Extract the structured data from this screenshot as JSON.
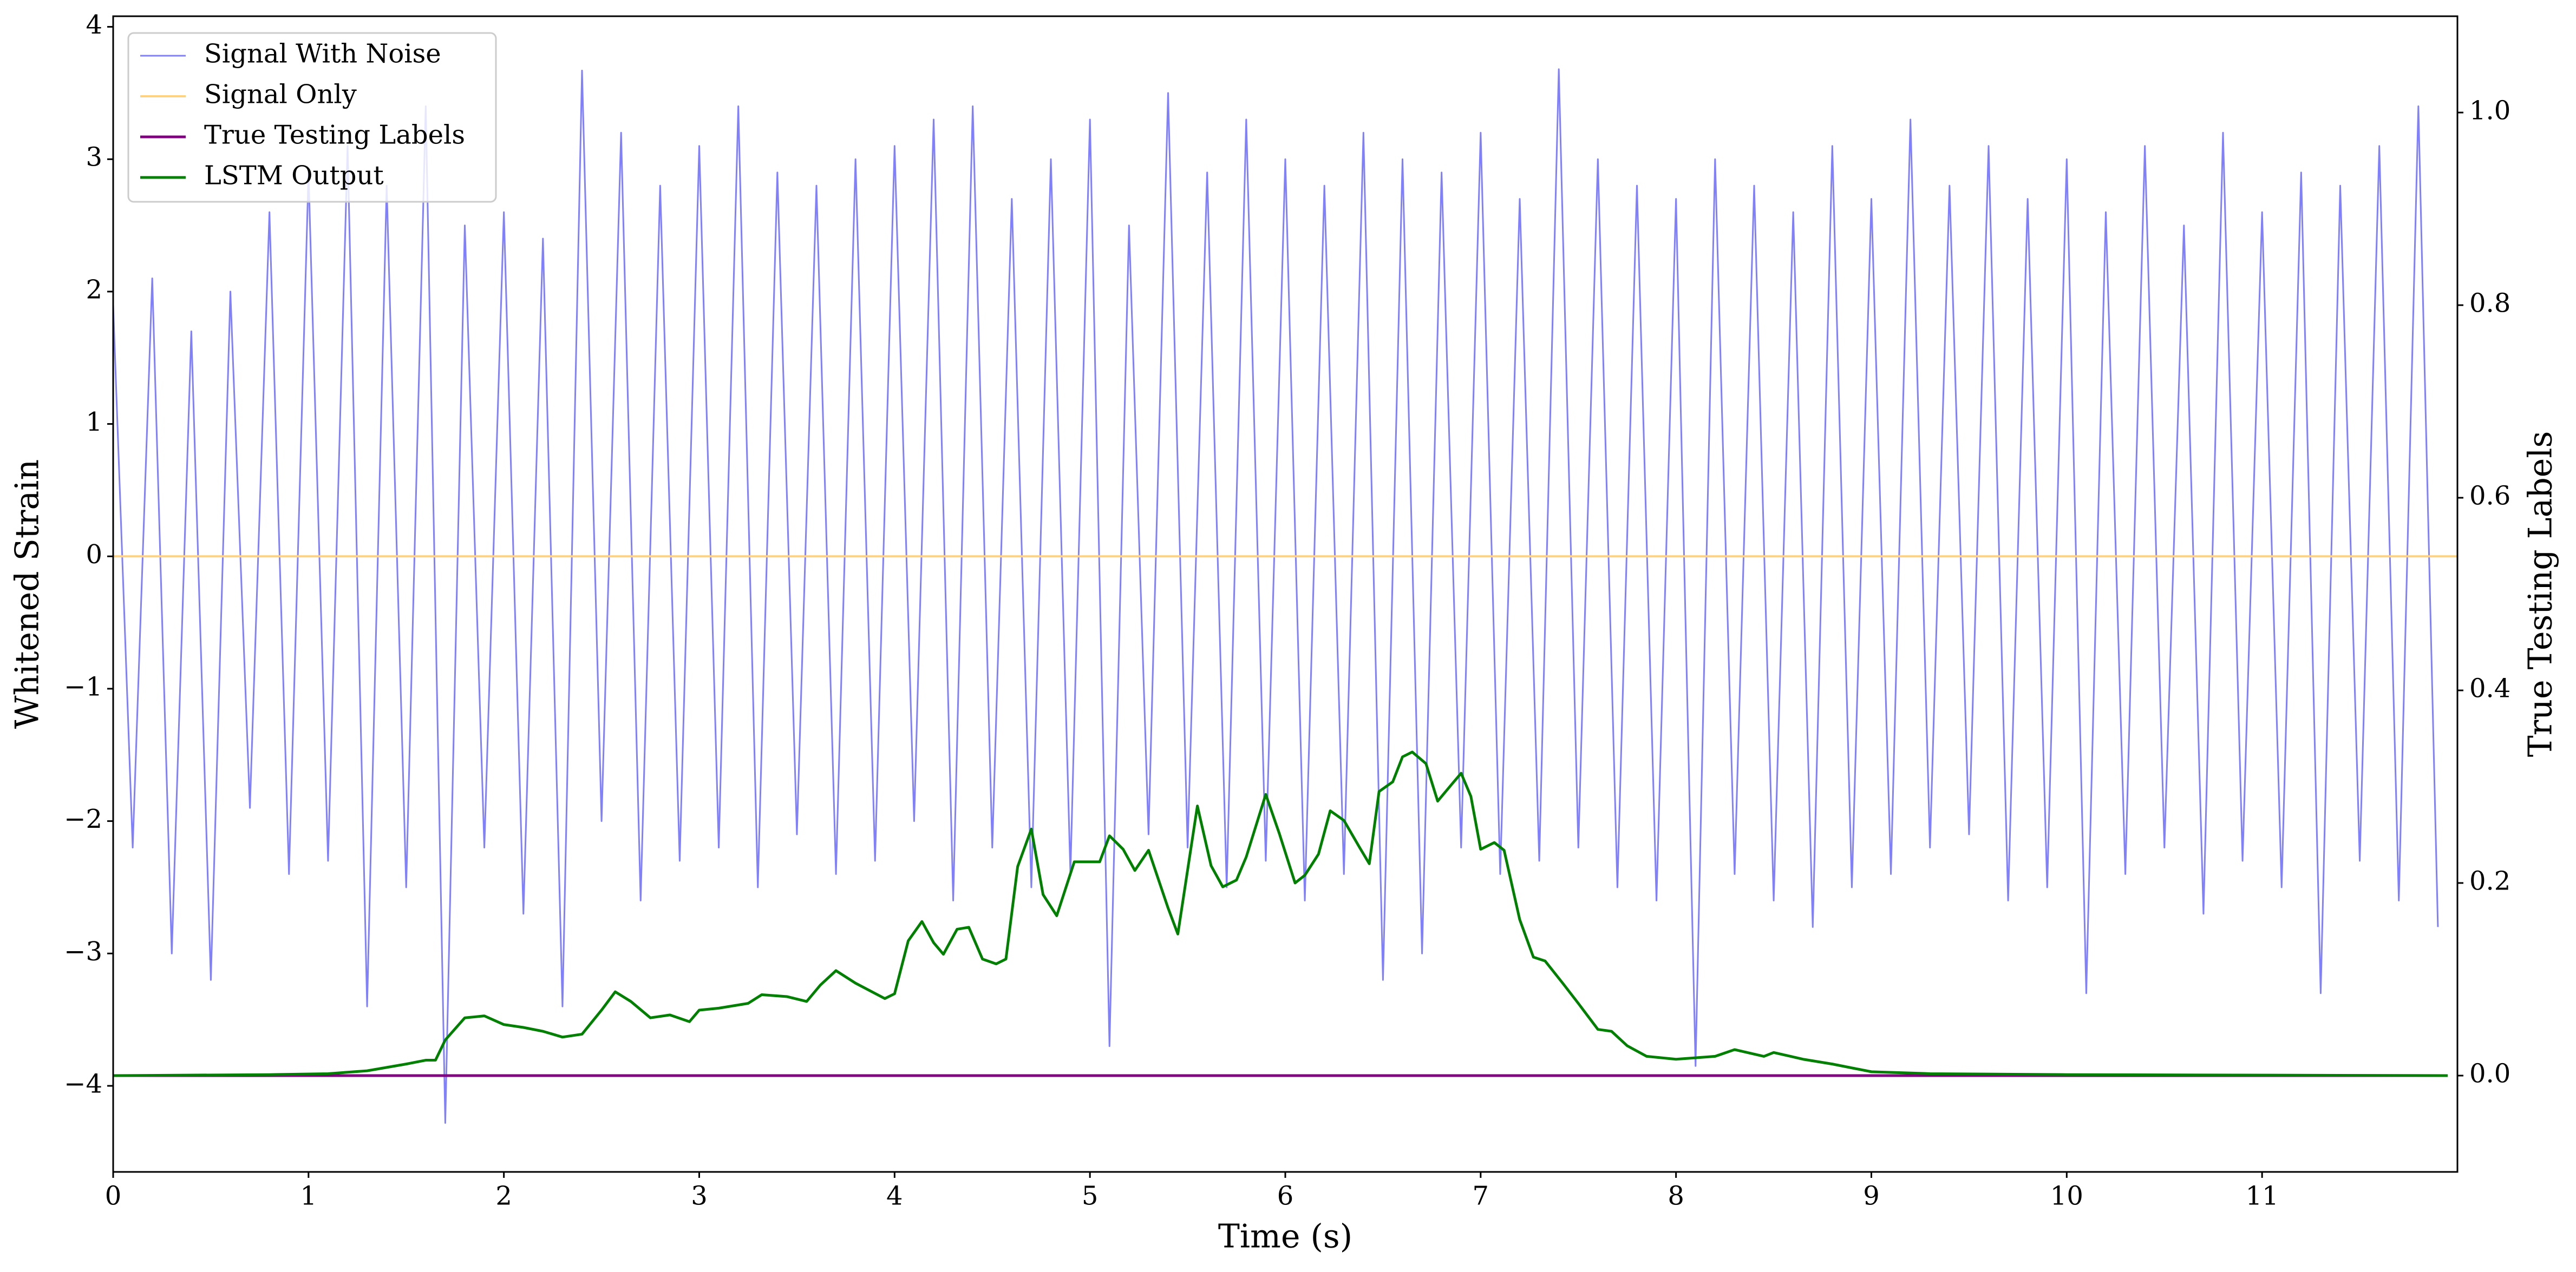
{
  "chart_data": {
    "type": "line",
    "xlabel": "Time (s)",
    "ylabel": "Whitened Strain",
    "y2label": "True Testing Labels",
    "xlim": [
      0,
      12
    ],
    "ylim": [
      -4.65,
      4.08
    ],
    "y2lim": [
      -0.1,
      1.1
    ],
    "xticks": [
      0,
      1,
      2,
      3,
      4,
      5,
      6,
      7,
      8,
      9,
      10,
      11
    ],
    "yticks": [
      {
        "value": -4,
        "label": "−4"
      },
      {
        "value": -3,
        "label": "−3"
      },
      {
        "value": -2,
        "label": "−2"
      },
      {
        "value": -1,
        "label": "−1"
      },
      0,
      1,
      2,
      3,
      4
    ],
    "y2ticks": [
      {
        "value": 0,
        "label": "0.0"
      },
      0.2,
      0.4,
      0.6,
      0.8,
      {
        "value": 1,
        "label": "1.0"
      }
    ],
    "legend": "upper left",
    "series": [
      {
        "name": "Signal With Noise",
        "color": "#8080ff",
        "width": 3,
        "x": [
          0,
          0.1,
          0.2,
          0.3,
          0.4,
          0.5,
          0.6,
          0.7,
          0.8,
          0.9,
          1,
          1.1,
          1.2,
          1.3,
          1.4,
          1.5,
          1.6,
          1.7,
          1.8,
          1.9,
          2,
          2.1,
          2.2,
          2.3,
          2.4,
          2.5,
          2.6,
          2.7,
          2.8,
          2.9,
          3,
          3.1,
          3.2,
          3.3,
          3.4,
          3.5,
          3.6,
          3.7,
          3.8,
          3.9,
          4,
          4.1,
          4.2,
          4.3,
          4.4,
          4.5,
          4.6,
          4.7,
          4.8,
          4.9,
          5,
          5.1,
          5.2,
          5.3,
          5.4,
          5.5,
          5.6,
          5.7,
          5.8,
          5.9,
          6,
          6.1,
          6.2,
          6.3,
          6.4,
          6.5,
          6.6,
          6.7,
          6.8,
          6.9,
          7,
          7.1,
          7.2,
          7.3,
          7.4,
          7.5,
          7.6,
          7.7,
          7.8,
          7.9,
          8,
          8.1,
          8.2,
          8.3,
          8.4,
          8.5,
          8.6,
          8.7,
          8.8,
          8.9,
          9,
          9.1,
          9.2,
          9.3,
          9.4,
          9.5,
          9.6,
          9.7,
          9.8,
          9.9,
          10,
          10.1,
          10.2,
          10.3,
          10.4,
          10.5,
          10.6,
          10.7,
          10.8,
          10.9,
          11,
          11.1,
          11.2,
          11.3,
          11.4,
          11.5,
          11.6,
          11.7,
          11.8,
          11.9
        ],
        "values": [
          1.9,
          -2.2,
          2.1,
          -3.0,
          1.7,
          -3.2,
          2.0,
          -1.9,
          2.6,
          -2.4,
          2.9,
          -2.3,
          3.1,
          -3.4,
          2.8,
          -2.5,
          3.4,
          -4.28,
          2.5,
          -2.2,
          2.6,
          -2.7,
          2.4,
          -3.4,
          3.67,
          -2.0,
          3.2,
          -2.6,
          2.8,
          -2.3,
          3.1,
          -2.2,
          3.4,
          -2.5,
          2.9,
          -2.1,
          2.8,
          -2.4,
          3.0,
          -2.3,
          3.1,
          -2.0,
          3.3,
          -2.6,
          3.4,
          -2.2,
          2.7,
          -2.5,
          3.0,
          -2.4,
          3.3,
          -3.7,
          2.5,
          -2.1,
          3.5,
          -2.2,
          2.9,
          -2.5,
          3.3,
          -2.3,
          3.0,
          -2.6,
          2.8,
          -2.4,
          3.2,
          -3.2,
          3.0,
          -3.0,
          2.9,
          -2.2,
          3.2,
          -2.4,
          2.7,
          -2.3,
          3.68,
          -2.2,
          3.0,
          -2.5,
          2.8,
          -2.6,
          2.7,
          -3.85,
          3.0,
          -2.4,
          2.8,
          -2.6,
          2.6,
          -2.8,
          3.1,
          -2.5,
          2.7,
          -2.4,
          3.3,
          -2.2,
          2.8,
          -2.1,
          3.1,
          -2.6,
          2.7,
          -2.5,
          3.0,
          -3.3,
          2.6,
          -2.4,
          3.1,
          -2.2,
          2.5,
          -2.7,
          3.2,
          -2.3,
          2.6,
          -2.5,
          2.9,
          -3.3,
          2.8,
          -2.3,
          3.1,
          -2.6,
          3.4,
          -2.8
        ]
      },
      {
        "name": "Signal Only",
        "color": "#ffd280",
        "width": 4,
        "x": [
          0,
          12
        ],
        "values": [
          0,
          0
        ]
      },
      {
        "name": "True Testing Labels",
        "color": "purple",
        "width": 5,
        "axis": "y2",
        "x": [
          0,
          11.95
        ],
        "values": [
          0,
          0
        ]
      },
      {
        "name": "LSTM Output",
        "color": "green",
        "width": 5,
        "axis": "y2",
        "x": [
          0,
          0.8,
          1.1,
          1.3,
          1.5,
          1.6,
          1.65,
          1.7,
          1.8,
          1.9,
          2.0,
          2.1,
          2.2,
          2.3,
          2.4,
          2.5,
          2.57,
          2.65,
          2.75,
          2.85,
          2.95,
          3.0,
          3.1,
          3.25,
          3.32,
          3.45,
          3.55,
          3.62,
          3.7,
          3.8,
          3.95,
          4.0,
          4.07,
          4.14,
          4.2,
          4.25,
          4.32,
          4.38,
          4.45,
          4.52,
          4.57,
          4.63,
          4.7,
          4.76,
          4.83,
          4.92,
          5.05,
          5.1,
          5.17,
          5.23,
          5.3,
          5.4,
          5.45,
          5.55,
          5.62,
          5.68,
          5.75,
          5.8,
          5.9,
          5.97,
          6.05,
          6.1,
          6.17,
          6.23,
          6.3,
          6.38,
          6.43,
          6.48,
          6.55,
          6.6,
          6.65,
          6.72,
          6.78,
          6.85,
          6.9,
          6.95,
          7.0,
          7.07,
          7.12,
          7.2,
          7.27,
          7.33,
          7.42,
          7.5,
          7.6,
          7.67,
          7.75,
          7.85,
          8.0,
          8.2,
          8.3,
          8.45,
          8.5,
          8.65,
          8.8,
          9.0,
          9.3,
          10.0,
          11.95
        ],
        "values": [
          0,
          0.001,
          0.002,
          0.005,
          0.012,
          0.016,
          0.016,
          0.037,
          0.06,
          0.062,
          0.053,
          0.05,
          0.046,
          0.04,
          0.043,
          0.068,
          0.087,
          0.077,
          0.06,
          0.063,
          0.056,
          0.068,
          0.07,
          0.075,
          0.084,
          0.082,
          0.077,
          0.094,
          0.109,
          0.096,
          0.08,
          0.085,
          0.14,
          0.16,
          0.138,
          0.126,
          0.152,
          0.154,
          0.121,
          0.116,
          0.121,
          0.217,
          0.256,
          0.188,
          0.166,
          0.222,
          0.222,
          0.249,
          0.235,
          0.213,
          0.234,
          0.174,
          0.147,
          0.28,
          0.218,
          0.196,
          0.203,
          0.227,
          0.292,
          0.251,
          0.2,
          0.208,
          0.23,
          0.275,
          0.265,
          0.237,
          0.22,
          0.295,
          0.305,
          0.331,
          0.336,
          0.324,
          0.285,
          0.302,
          0.314,
          0.29,
          0.235,
          0.242,
          0.234,
          0.162,
          0.123,
          0.119,
          0.096,
          0.075,
          0.048,
          0.046,
          0.031,
          0.02,
          0.017,
          0.02,
          0.027,
          0.02,
          0.024,
          0.017,
          0.012,
          0.004,
          0.002,
          0.001,
          0
        ]
      }
    ]
  }
}
